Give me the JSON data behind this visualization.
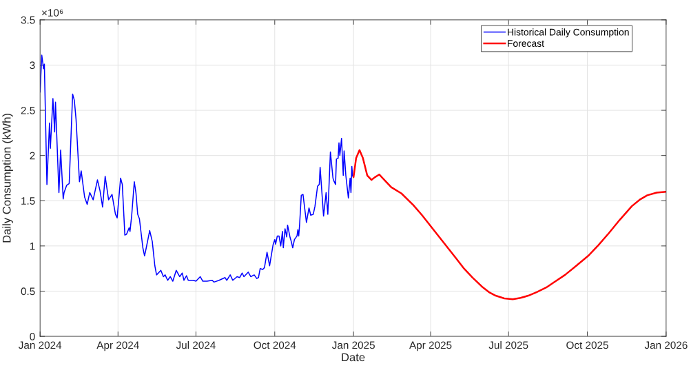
{
  "chart_data": {
    "type": "line",
    "xlabel": "Date",
    "ylabel": "Daily Consumption (kWh)",
    "annotations": [
      "×10⁶"
    ],
    "xlim": [
      "2024-01-01",
      "2026-01-01"
    ],
    "xticks": [
      {
        "value": "2024-01-01",
        "label": "Jan 2024"
      },
      {
        "value": "2024-04-01",
        "label": "Apr 2024"
      },
      {
        "value": "2024-07-01",
        "label": "Jul 2024"
      },
      {
        "value": "2024-10-01",
        "label": "Oct 2024"
      },
      {
        "value": "2025-01-01",
        "label": "Jan 2025"
      },
      {
        "value": "2025-04-01",
        "label": "Apr 2025"
      },
      {
        "value": "2025-07-01",
        "label": "Jul 2025"
      },
      {
        "value": "2025-10-01",
        "label": "Oct 2025"
      },
      {
        "value": "2026-01-01",
        "label": "Jan 2026"
      }
    ],
    "ylim": [
      0,
      3.5
    ],
    "yticks": [
      0,
      0.5,
      1,
      1.5,
      2,
      2.5,
      3,
      3.5
    ],
    "grid": true,
    "legend": "top right",
    "series": [
      {
        "name": "Historical Daily Consumption",
        "color": "#0000ff",
        "x": [
          "2024-01-01",
          "2024-01-03",
          "2024-01-05",
          "2024-01-06",
          "2024-01-09",
          "2024-01-12",
          "2024-01-13",
          "2024-01-16",
          "2024-01-18",
          "2024-01-19",
          "2024-01-23",
          "2024-01-25",
          "2024-01-28",
          "2024-01-29",
          "2024-02-01",
          "2024-02-04",
          "2024-02-08",
          "2024-02-10",
          "2024-02-12",
          "2024-02-16",
          "2024-02-18",
          "2024-02-22",
          "2024-02-25",
          "2024-02-28",
          "2024-03-03",
          "2024-03-08",
          "2024-03-11",
          "2024-03-14",
          "2024-03-17",
          "2024-03-21",
          "2024-03-25",
          "2024-03-29",
          "2024-03-31",
          "2024-04-04",
          "2024-04-06",
          "2024-04-09",
          "2024-04-11",
          "2024-04-14",
          "2024-04-15",
          "2024-04-17",
          "2024-04-20",
          "2024-04-22",
          "2024-04-24",
          "2024-04-26",
          "2024-04-30",
          "2024-05-02",
          "2024-05-04",
          "2024-05-08",
          "2024-05-11",
          "2024-05-14",
          "2024-05-16",
          "2024-05-19",
          "2024-05-21",
          "2024-05-24",
          "2024-05-26",
          "2024-05-29",
          "2024-06-01",
          "2024-06-04",
          "2024-06-08",
          "2024-06-12",
          "2024-06-15",
          "2024-06-17",
          "2024-06-20",
          "2024-06-22",
          "2024-06-28",
          "2024-07-01",
          "2024-07-06",
          "2024-07-09",
          "2024-07-14",
          "2024-07-20",
          "2024-07-22",
          "2024-07-28",
          "2024-08-04",
          "2024-08-06",
          "2024-08-10",
          "2024-08-13",
          "2024-08-18",
          "2024-08-21",
          "2024-08-24",
          "2024-08-26",
          "2024-08-31",
          "2024-09-03",
          "2024-09-07",
          "2024-09-10",
          "2024-09-12",
          "2024-09-14",
          "2024-09-17",
          "2024-09-19",
          "2024-09-22",
          "2024-09-25",
          "2024-09-29",
          "2024-10-01",
          "2024-10-02",
          "2024-10-04",
          "2024-10-06",
          "2024-10-08",
          "2024-10-10",
          "2024-10-11",
          "2024-10-13",
          "2024-10-15",
          "2024-10-16",
          "2024-10-19",
          "2024-10-20",
          "2024-10-22",
          "2024-10-24",
          "2024-10-27",
          "2024-10-28",
          "2024-10-29",
          "2024-10-30",
          "2024-11-01",
          "2024-11-03",
          "2024-11-07",
          "2024-11-10",
          "2024-11-12",
          "2024-11-15",
          "2024-11-17",
          "2024-11-20",
          "2024-11-22",
          "2024-11-23",
          "2024-11-27",
          "2024-11-30",
          "2024-12-02",
          "2024-12-05",
          "2024-12-08",
          "2024-12-09",
          "2024-12-11",
          "2024-12-12",
          "2024-12-14",
          "2024-12-15",
          "2024-12-16",
          "2024-12-18",
          "2024-12-20",
          "2024-12-21",
          "2024-12-23",
          "2024-12-26",
          "2024-12-28",
          "2024-12-29",
          "2024-12-30",
          "2024-12-31"
        ],
        "values": [
          2.7,
          3.11,
          2.96,
          3.01,
          1.68,
          2.36,
          2.08,
          2.63,
          2.26,
          2.59,
          1.59,
          2.06,
          1.52,
          1.59,
          1.67,
          1.69,
          2.68,
          2.61,
          2.4,
          1.71,
          1.83,
          1.54,
          1.46,
          1.59,
          1.51,
          1.73,
          1.61,
          1.43,
          1.77,
          1.51,
          1.57,
          1.35,
          1.31,
          1.75,
          1.68,
          1.12,
          1.13,
          1.2,
          1.16,
          1.34,
          1.71,
          1.58,
          1.35,
          1.3,
          0.98,
          0.89,
          0.98,
          1.17,
          1.05,
          0.78,
          0.68,
          0.71,
          0.73,
          0.66,
          0.68,
          0.62,
          0.66,
          0.61,
          0.73,
          0.66,
          0.7,
          0.62,
          0.67,
          0.62,
          0.62,
          0.61,
          0.66,
          0.61,
          0.61,
          0.62,
          0.6,
          0.62,
          0.65,
          0.62,
          0.68,
          0.62,
          0.66,
          0.65,
          0.7,
          0.66,
          0.71,
          0.66,
          0.68,
          0.64,
          0.65,
          0.75,
          0.74,
          0.76,
          0.93,
          0.78,
          1.01,
          1.07,
          1.02,
          1.11,
          1.11,
          1.0,
          1.16,
          0.98,
          1.19,
          1.1,
          1.23,
          1.09,
          1.06,
          0.98,
          1.07,
          1.11,
          1.18,
          1.11,
          1.23,
          1.56,
          1.57,
          1.26,
          1.42,
          1.34,
          1.35,
          1.44,
          1.66,
          1.68,
          1.87,
          1.33,
          1.59,
          1.35,
          2.04,
          1.75,
          1.72,
          1.68,
          1.96,
          1.97,
          2.14,
          2.0,
          2.19,
          1.78,
          2.05,
          1.78,
          1.53,
          1.75,
          1.59,
          1.88,
          1.77
        ]
      },
      {
        "name": "Forecast",
        "color": "#ff0000",
        "x": [
          "2025-01-01",
          "2025-01-04",
          "2025-01-08",
          "2025-01-12",
          "2025-01-17",
          "2025-01-22",
          "2025-01-26",
          "2025-01-31",
          "2025-02-06",
          "2025-02-14",
          "2025-02-26",
          "2025-03-12",
          "2025-03-22",
          "2025-04-01",
          "2025-04-11",
          "2025-04-21",
          "2025-05-01",
          "2025-05-10",
          "2025-05-20",
          "2025-05-31",
          "2025-06-08",
          "2025-06-16",
          "2025-06-26",
          "2025-07-06",
          "2025-07-15",
          "2025-07-24",
          "2025-08-03",
          "2025-08-14",
          "2025-08-25",
          "2025-09-05",
          "2025-09-18",
          "2025-10-02",
          "2025-10-14",
          "2025-10-26",
          "2025-11-08",
          "2025-11-22",
          "2025-12-01",
          "2025-12-10",
          "2025-12-21",
          "2026-01-01"
        ],
        "values": [
          1.76,
          1.97,
          2.06,
          1.97,
          1.78,
          1.73,
          1.76,
          1.79,
          1.73,
          1.65,
          1.58,
          1.45,
          1.34,
          1.22,
          1.1,
          0.98,
          0.86,
          0.75,
          0.65,
          0.55,
          0.49,
          0.45,
          0.42,
          0.41,
          0.425,
          0.45,
          0.49,
          0.54,
          0.61,
          0.68,
          0.78,
          0.89,
          1.01,
          1.14,
          1.29,
          1.44,
          1.51,
          1.56,
          1.59,
          1.6
        ]
      }
    ]
  }
}
